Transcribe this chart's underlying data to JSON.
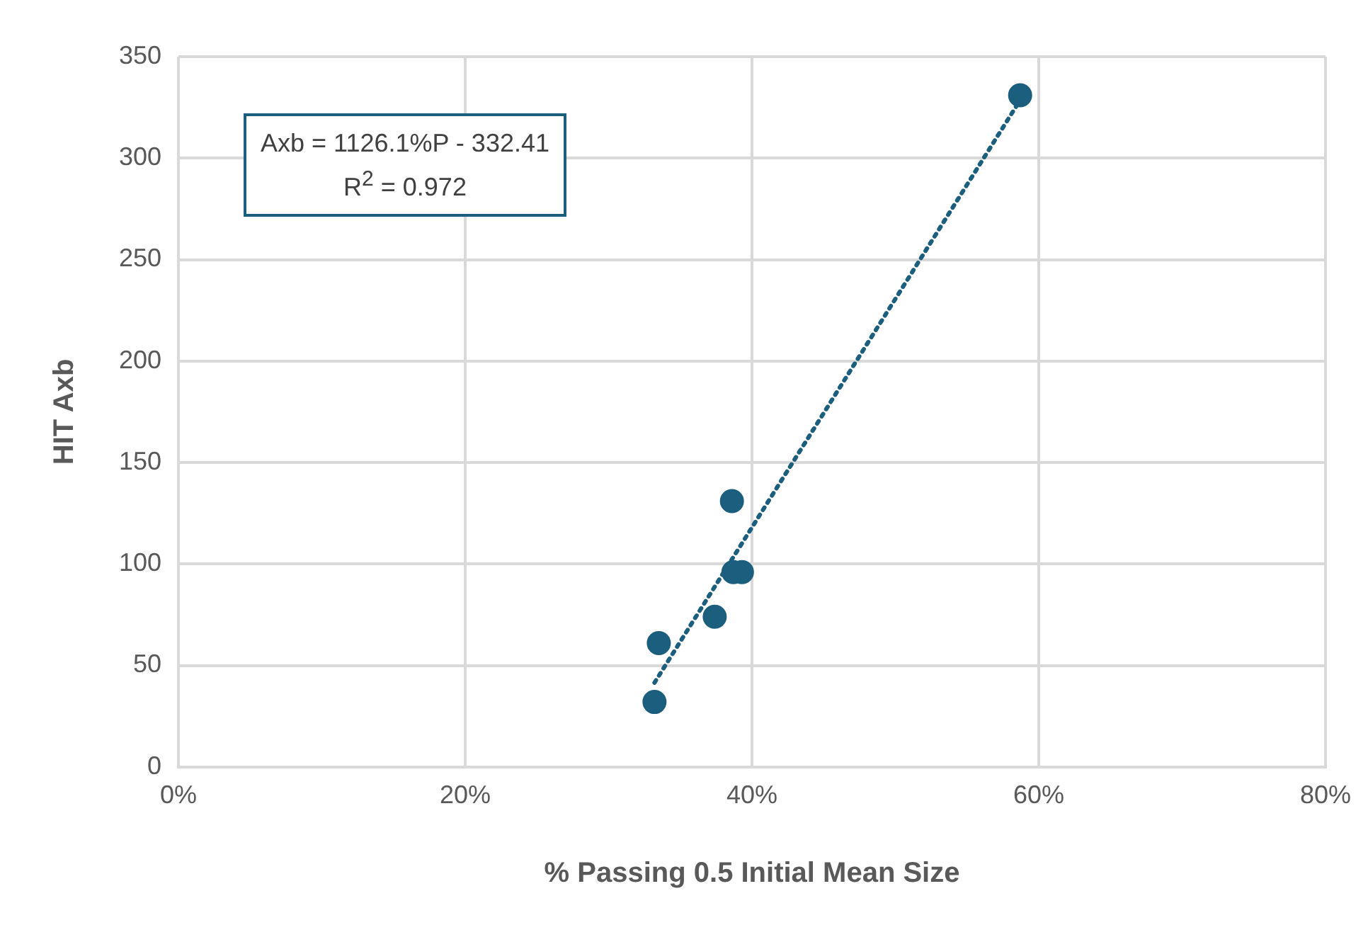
{
  "chart_data": {
    "type": "scatter",
    "xlabel": "% Passing 0.5 Initial Mean Size",
    "ylabel": "HIT Axb",
    "x": [
      33.2,
      33.5,
      37.4,
      38.6,
      38.7,
      39.3,
      58.7
    ],
    "series": [
      {
        "color": "#1b5e7e",
        "values": [
          32,
          61,
          74,
          131,
          96,
          96,
          331
        ],
        "marker": "circle"
      },
      {
        "type": "line",
        "color": "#1b5e7e",
        "x": [
          33.2,
          58.7
        ],
        "values": [
          41.5,
          328.6
        ],
        "line_style": "dotted",
        "marker": "none"
      }
    ],
    "annotations": [
      "Axb = 1126.1%P - 332.41",
      "R$^{2}$ = 0.972"
    ],
    "xlim": [
      0,
      80
    ],
    "xticks": [
      {
        "value": 0,
        "label": "0%"
      },
      {
        "value": 20,
        "label": "20%"
      },
      {
        "value": 40,
        "label": "40%"
      },
      {
        "value": 60,
        "label": "60%"
      },
      {
        "value": 80,
        "label": "80%"
      }
    ],
    "ylim": [
      0,
      350
    ],
    "yticks": [
      0,
      50,
      100,
      150,
      200,
      250,
      300,
      350
    ],
    "grid": true,
    "legend": false
  }
}
